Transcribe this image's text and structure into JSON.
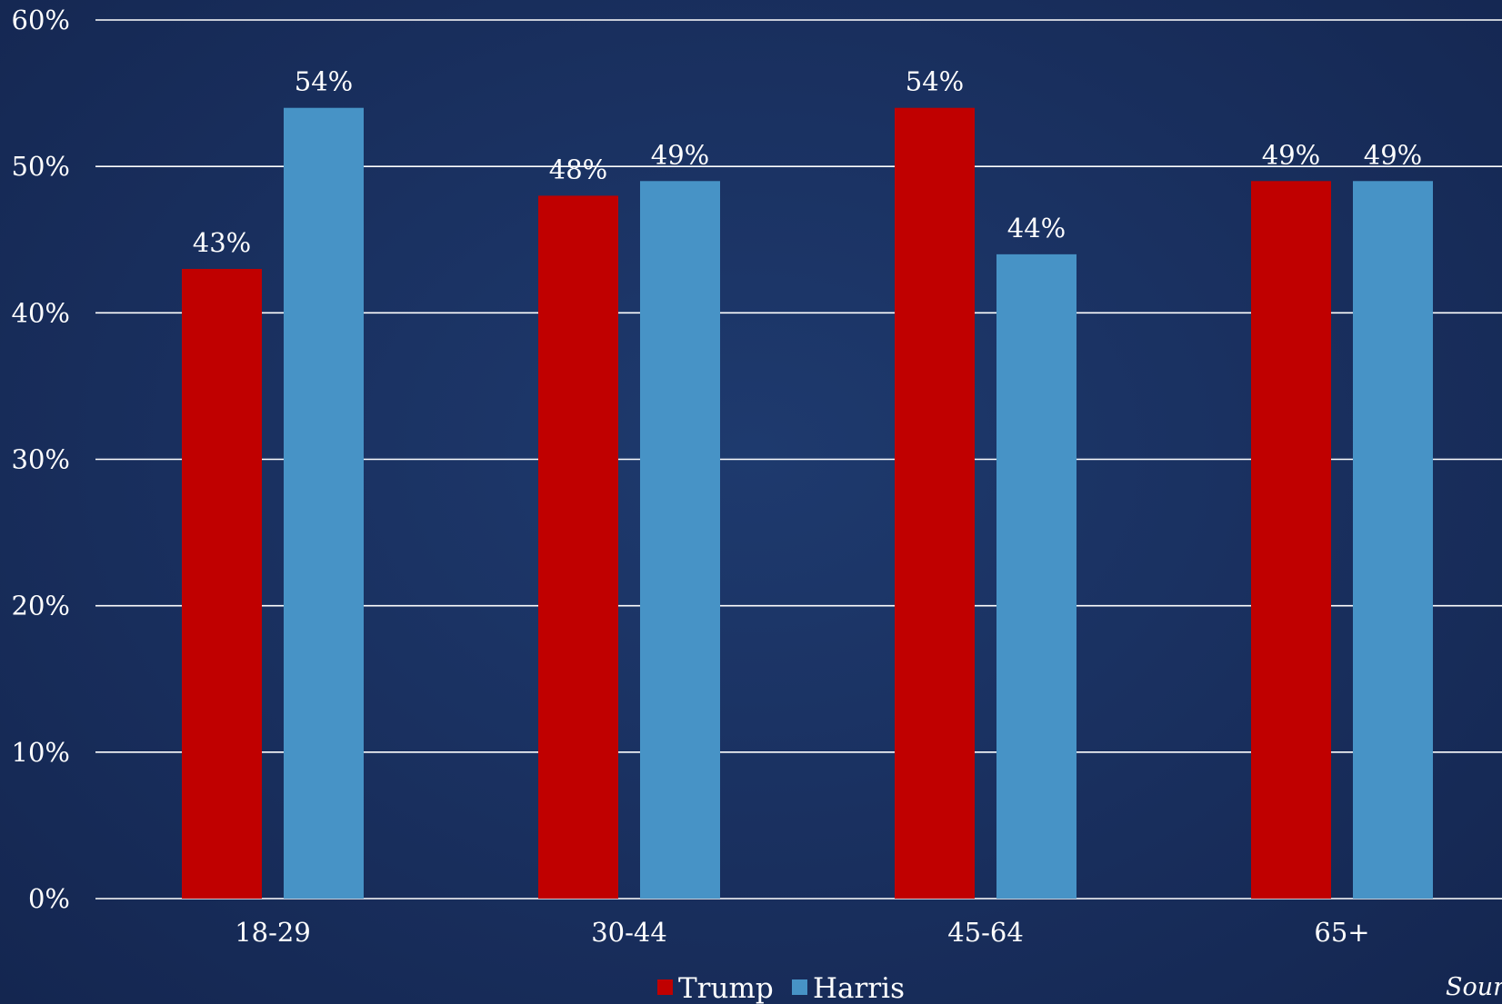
{
  "chart_data": {
    "type": "bar",
    "categories": [
      "18-29",
      "30-44",
      "45-64",
      "65+"
    ],
    "series": [
      {
        "name": "Trump",
        "values": [
          43,
          48,
          54,
          49
        ],
        "color": "#c00000"
      },
      {
        "name": "Harris",
        "values": [
          54,
          49,
          44,
          49
        ],
        "color": "#4793c6"
      }
    ],
    "value_suffix": "%",
    "ylim": [
      0,
      60
    ],
    "yticks": [
      0,
      10,
      20,
      30,
      40,
      50,
      60
    ],
    "ytick_labels": [
      "0%",
      "10%",
      "20%",
      "30%",
      "40%",
      "50%",
      "60%"
    ],
    "grid": true,
    "legend_placement": "bottom-center",
    "source_note": "Sour",
    "colors": {
      "background": "#1a3161",
      "gridline": "#ffffff",
      "text": "#ffffff"
    }
  }
}
